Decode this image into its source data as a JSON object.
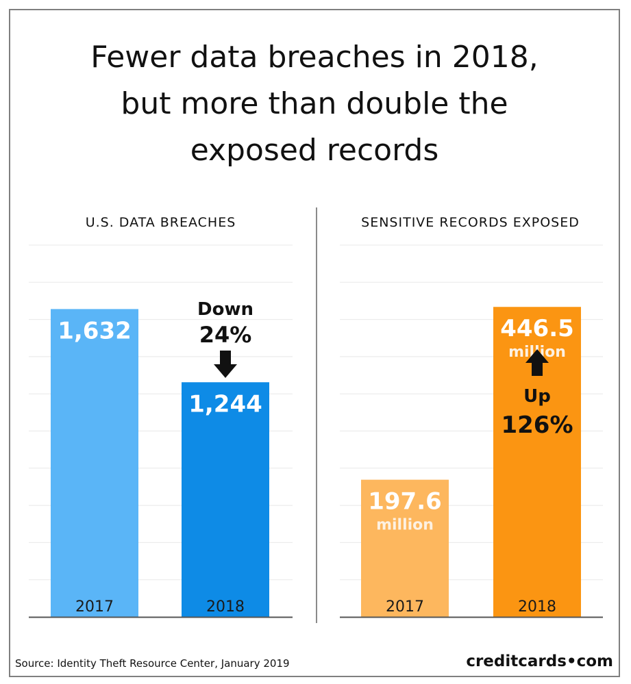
{
  "title_lines": [
    "Fewer data breaches in 2018,",
    "but more than double the",
    "exposed records"
  ],
  "source": "Source: Identity Theft Resource Center, January 2019",
  "brand": "creditcards•com",
  "colors": {
    "breaches_2017": "#5ab5f7",
    "breaches_2018": "#0e8be6",
    "records_2017": "#fdb75e",
    "records_2018": "#fb9512",
    "gridline": "#e8e8e8",
    "axis": "#555555"
  },
  "chart_data": [
    {
      "type": "bar",
      "title": "U.S. DATA BREACHES",
      "categories": [
        "2017",
        "2018"
      ],
      "values": [
        1632,
        1244
      ],
      "value_labels": [
        "1,632",
        "1,244"
      ],
      "ylim": [
        0,
        2000
      ],
      "grid": true,
      "annotation": {
        "lines": [
          "Down",
          "24%"
        ],
        "arrow": "down"
      }
    },
    {
      "type": "bar",
      "title": "SENSITIVE RECORDS EXPOSED",
      "categories": [
        "2017",
        "2018"
      ],
      "values": [
        197.6,
        446.5
      ],
      "value_labels": [
        "197.6",
        "446.5"
      ],
      "value_units": [
        "million",
        "million"
      ],
      "ylim": [
        0,
        500
      ],
      "grid": true,
      "annotation": {
        "lines": [
          "Up",
          "126%"
        ],
        "arrow": "up"
      }
    }
  ]
}
